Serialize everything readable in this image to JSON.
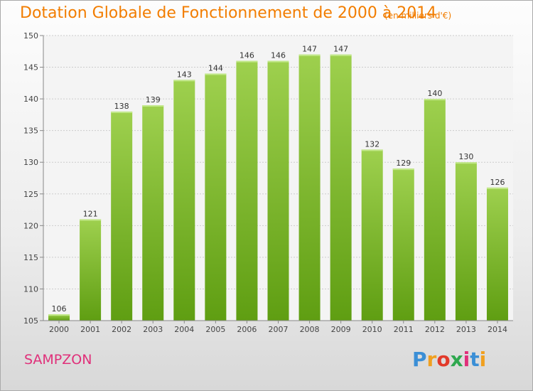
{
  "title": "Dotation Globale de Fonctionnement de 2000 à 2014",
  "subtitle": "(en milliers d'€)",
  "commune": "SAMPZON",
  "logo": {
    "letters": [
      "P",
      "r",
      "o",
      "x",
      "i",
      "t",
      "i"
    ],
    "colors": [
      "#3b8fd6",
      "#f0a020",
      "#e23a2a",
      "#2fa84f",
      "#e0307a",
      "#3b8fd6",
      "#f0a020"
    ]
  },
  "colors": {
    "title": "#f27d00",
    "commune": "#e0307a",
    "bar_top": "#9ed04e",
    "bar_bottom": "#5f9e12"
  },
  "chart_data": {
    "type": "bar",
    "categories": [
      "2000",
      "2001",
      "2002",
      "2003",
      "2004",
      "2005",
      "2006",
      "2007",
      "2008",
      "2009",
      "2010",
      "2011",
      "2012",
      "2013",
      "2014"
    ],
    "values": [
      106,
      121,
      138,
      139,
      143,
      144,
      146,
      146,
      147,
      147,
      132,
      129,
      140,
      130,
      126
    ],
    "ylim": [
      105,
      150
    ],
    "yticks": [
      "105",
      "110",
      "115",
      "120",
      "125",
      "130",
      "135",
      "140",
      "145",
      "150"
    ],
    "grid": true
  }
}
